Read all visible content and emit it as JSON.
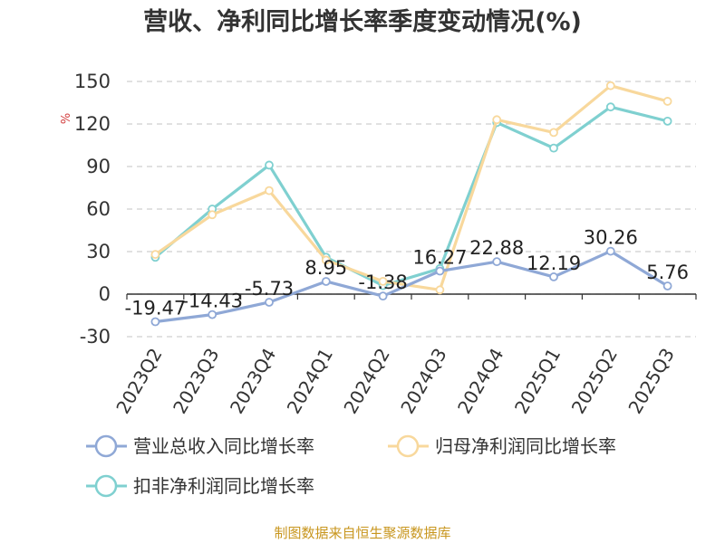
{
  "chart_data": {
    "type": "line",
    "title": "营收、净利同比增长率季度变动情况(%)",
    "ylabel": "%",
    "categories": [
      "2023Q2",
      "2023Q3",
      "2023Q4",
      "2024Q1",
      "2024Q2",
      "2024Q3",
      "2024Q4",
      "2025Q1",
      "2025Q2",
      "2025Q3"
    ],
    "ylim": [
      -30,
      150
    ],
    "yticks": [
      -30,
      0,
      30,
      60,
      90,
      120,
      150
    ],
    "grid": true,
    "legend_position": "bottom",
    "series": [
      {
        "name": "营业总收入同比增长率",
        "color": "#8fa8d6",
        "show_labels": true,
        "values": [
          -19.47,
          -14.43,
          -5.73,
          8.95,
          -1.38,
          16.27,
          22.88,
          12.19,
          30.26,
          5.76
        ],
        "labels": [
          "-19.47",
          "-14.43",
          "-5.73",
          "8.95",
          "-1.38",
          "16.27",
          "22.88",
          "12.19",
          "30.26",
          "5.76"
        ]
      },
      {
        "name": "归母净利润同比增长率",
        "color": "#f8d89c",
        "show_labels": false,
        "values": [
          28,
          56,
          73,
          24,
          9,
          3,
          123,
          114,
          147,
          136
        ]
      },
      {
        "name": "扣非净利润同比增长率",
        "color": "#7fd0d0",
        "show_labels": false,
        "values": [
          26,
          60,
          91,
          26,
          6,
          18,
          121,
          103,
          132,
          122
        ]
      }
    ]
  },
  "footer": "制图数据来自恒生聚源数据库"
}
